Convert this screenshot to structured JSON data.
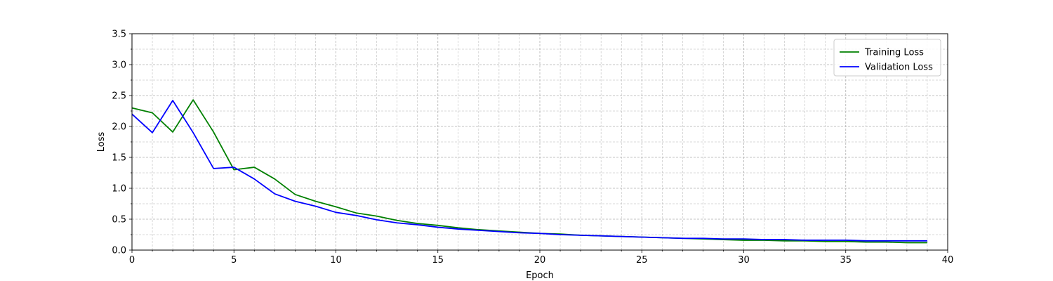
{
  "chart_data": {
    "type": "line",
    "title": "",
    "xlabel": "Epoch",
    "ylabel": "Loss",
    "xlim": [
      0,
      40
    ],
    "ylim": [
      0,
      3.5
    ],
    "x_major_ticks": [
      0,
      5,
      10,
      15,
      20,
      25,
      30,
      35,
      40
    ],
    "x_minor_step": 1,
    "y_major_ticks": [
      0.0,
      0.5,
      1.0,
      1.5,
      2.0,
      2.5,
      3.0,
      3.5
    ],
    "y_minor_step": 0.25,
    "grid": true,
    "legend_position": "top-right",
    "x": [
      0,
      1,
      2,
      3,
      4,
      5,
      6,
      7,
      8,
      9,
      10,
      11,
      12,
      13,
      14,
      15,
      16,
      17,
      18,
      19,
      20,
      21,
      22,
      23,
      24,
      25,
      26,
      27,
      28,
      29,
      30,
      31,
      32,
      33,
      34,
      35,
      36,
      37,
      38,
      39
    ],
    "series": [
      {
        "name": "Training Loss",
        "color": "#008000",
        "values": [
          2.3,
          2.22,
          1.91,
          2.43,
          1.91,
          1.3,
          1.34,
          1.15,
          0.9,
          0.79,
          0.7,
          0.6,
          0.55,
          0.48,
          0.43,
          0.4,
          0.36,
          0.33,
          0.31,
          0.29,
          0.27,
          0.26,
          0.24,
          0.23,
          0.22,
          0.21,
          0.2,
          0.19,
          0.18,
          0.17,
          0.16,
          0.16,
          0.15,
          0.15,
          0.14,
          0.14,
          0.13,
          0.13,
          0.12,
          0.12
        ]
      },
      {
        "name": "Validation Loss",
        "color": "#0000ff",
        "values": [
          2.2,
          1.9,
          2.42,
          1.9,
          1.32,
          1.34,
          1.15,
          0.91,
          0.79,
          0.71,
          0.61,
          0.56,
          0.49,
          0.44,
          0.41,
          0.37,
          0.34,
          0.32,
          0.3,
          0.28,
          0.27,
          0.25,
          0.24,
          0.23,
          0.22,
          0.21,
          0.2,
          0.19,
          0.19,
          0.18,
          0.18,
          0.17,
          0.17,
          0.16,
          0.16,
          0.16,
          0.15,
          0.15,
          0.15,
          0.15
        ]
      }
    ]
  }
}
